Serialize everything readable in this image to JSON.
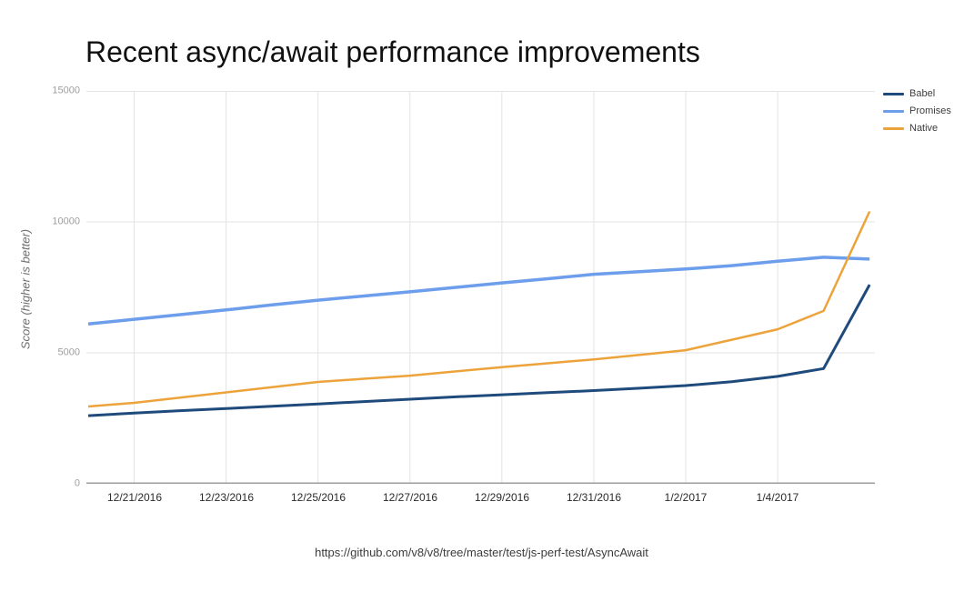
{
  "footer": {
    "source_url": "https://github.com/v8/v8/tree/master/test/js-perf-test/AsyncAwait"
  },
  "chart_data": {
    "type": "line",
    "title": "Recent async/await performance improvements",
    "xlabel": "",
    "ylabel": "Score (higher is better)",
    "grid": true,
    "legend_position": "top-right-outside",
    "grid_color": "#e3e3e3",
    "axis_color": "#9e9e9e",
    "ylim": [
      0,
      15000
    ],
    "y_ticks": [
      0,
      5000,
      10000,
      15000
    ],
    "y_tick_labels": [
      "0",
      "5000",
      "10000",
      "15000"
    ],
    "x": [
      "12/20/2016",
      "12/21/2016",
      "12/22/2016",
      "12/23/2016",
      "12/24/2016",
      "12/25/2016",
      "12/26/2016",
      "12/27/2016",
      "12/28/2016",
      "12/29/2016",
      "12/30/2016",
      "12/31/2016",
      "1/1/2017",
      "1/2/2017",
      "1/3/2017",
      "1/4/2017",
      "1/5/2017",
      "1/6/2017"
    ],
    "x_tick_indices": [
      1,
      3,
      5,
      7,
      9,
      11,
      13,
      15
    ],
    "x_tick_labels": [
      "12/21/2016",
      "12/23/2016",
      "12/25/2016",
      "12/27/2016",
      "12/29/2016",
      "12/31/2016",
      "1/2/2017",
      "1/4/2017"
    ],
    "series": [
      {
        "name": "Babel",
        "color": "#1f4a7c",
        "width": 3,
        "values": [
          2600,
          2700,
          2790,
          2870,
          2960,
          3050,
          3140,
          3230,
          3320,
          3400,
          3480,
          3560,
          3650,
          3750,
          3900,
          4100,
          4400,
          7600
        ]
      },
      {
        "name": "Promises",
        "color": "#6d9eeb",
        "width": 3.5,
        "values": [
          6100,
          6280,
          6460,
          6640,
          6830,
          7010,
          7170,
          7330,
          7500,
          7670,
          7830,
          8000,
          8100,
          8200,
          8330,
          8500,
          8650,
          8580
        ]
      },
      {
        "name": "Native",
        "color": "#eda33b",
        "width": 2.5,
        "values": [
          2950,
          3090,
          3290,
          3490,
          3690,
          3890,
          4010,
          4130,
          4290,
          4450,
          4600,
          4750,
          4920,
          5100,
          5500,
          5900,
          6600,
          10400
        ]
      }
    ]
  }
}
